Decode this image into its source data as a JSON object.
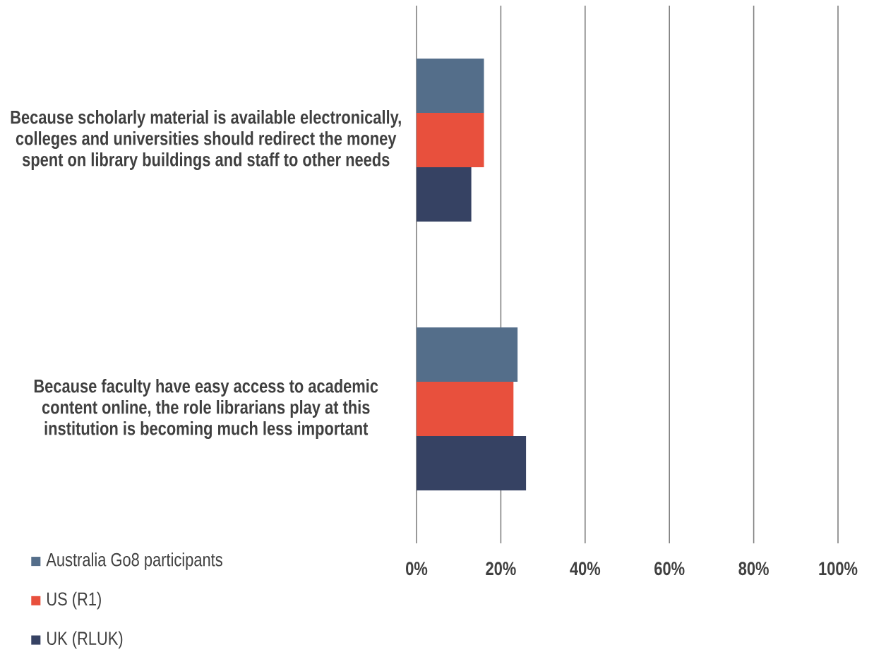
{
  "chart_data": {
    "type": "bar",
    "orientation": "horizontal",
    "categories": [
      "Because scholarly material is available electronically, colleges and universities should redirect the money spent on library buildings and staff to other needs",
      "Because faculty have easy access to academic content online, the role librarians play at this institution is becoming much less important"
    ],
    "series": [
      {
        "name": "Australia Go8 participants",
        "color": "#546e8a",
        "values": [
          16,
          24
        ]
      },
      {
        "name": "US (R1)",
        "color": "#e8503d",
        "values": [
          16,
          23
        ]
      },
      {
        "name": "UK (RLUK)",
        "color": "#364263",
        "values": [
          13,
          26
        ]
      }
    ],
    "xlim": [
      0,
      100
    ],
    "xticks": [
      {
        "value": 0,
        "label": "0%"
      },
      {
        "value": 20,
        "label": "20%"
      },
      {
        "value": 40,
        "label": "40%"
      },
      {
        "value": 60,
        "label": "60%"
      },
      {
        "value": 80,
        "label": "80%"
      },
      {
        "value": 100,
        "label": "100%"
      }
    ],
    "grid": "x",
    "legend": "bottom left"
  }
}
